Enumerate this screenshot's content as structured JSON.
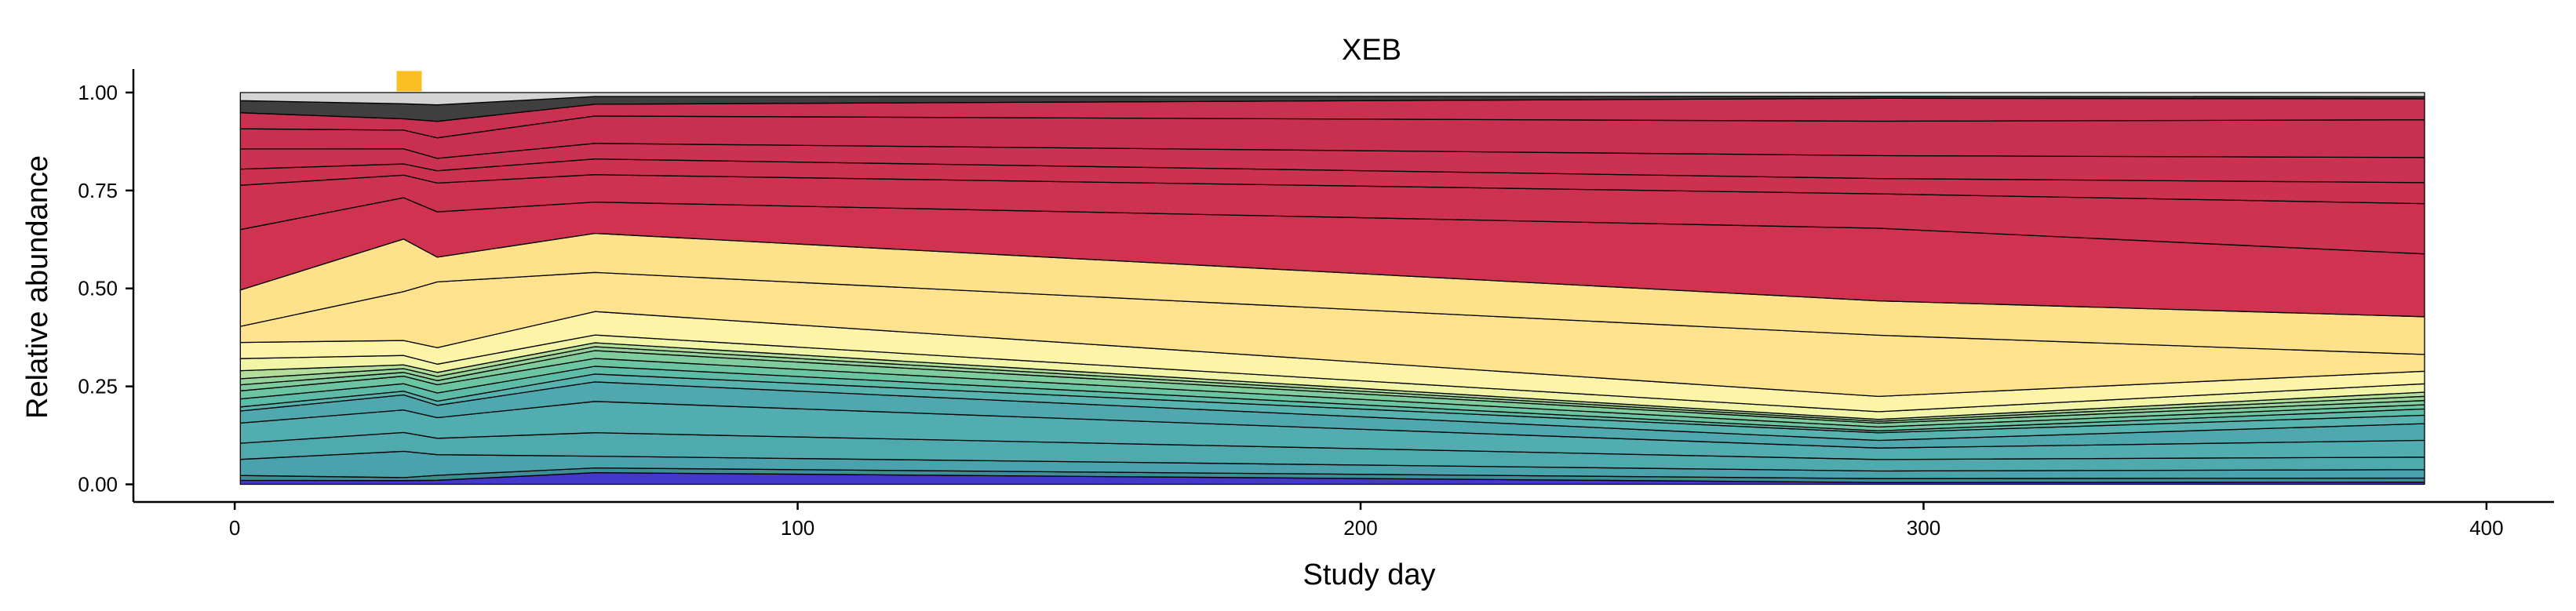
{
  "chart_data": {
    "type": "area",
    "stacked": true,
    "normalized": true,
    "title": "XEB",
    "xlabel": "Study day",
    "ylabel": "Relative abundance",
    "xlim": [
      -18,
      412
    ],
    "ylim": [
      -0.045,
      1.06
    ],
    "xticks": [
      0,
      100,
      200,
      300,
      400
    ],
    "xtick_labels": [
      "0",
      "100",
      "200",
      "300",
      "400"
    ],
    "yticks": [
      0,
      0.25,
      0.5,
      0.75,
      1
    ],
    "ytick_labels": [
      "0.00",
      "0.25",
      "0.50",
      "0.75",
      "1.00"
    ],
    "grid": false,
    "legend": "none",
    "x": [
      1,
      30,
      36,
      64,
      292,
      389
    ],
    "marker": {
      "x": 31,
      "color": "#fbbf24"
    },
    "series": [
      {
        "color": "#4338ca",
        "values": [
          0.01,
          0.01,
          0.01,
          0.03,
          0.005,
          0.005
        ]
      },
      {
        "color": "#3e8e97",
        "values": [
          0.012,
          0.008,
          0.012,
          0.012,
          0.01,
          0.01
        ]
      },
      {
        "color": "#4aa2ac",
        "values": [
          0.04,
          0.07,
          0.05,
          0.03,
          0.02,
          0.02
        ]
      },
      {
        "color": "#4faaae",
        "values": [
          0.04,
          0.05,
          0.04,
          0.06,
          0.03,
          0.03
        ]
      },
      {
        "color": "#52adb0",
        "values": [
          0.05,
          0.06,
          0.05,
          0.08,
          0.03,
          0.04
        ]
      },
      {
        "color": "#4fa8ad",
        "values": [
          0.03,
          0.04,
          0.03,
          0.05,
          0.02,
          0.04
        ]
      },
      {
        "color": "#56b3af",
        "values": [
          0.01,
          0.01,
          0.01,
          0.02,
          0.02,
          0.02
        ]
      },
      {
        "color": "#5dbca8",
        "values": [
          0.02,
          0.02,
          0.02,
          0.02,
          0.005,
          0.015
        ]
      },
      {
        "color": "#6cc5a2",
        "values": [
          0.02,
          0.02,
          0.02,
          0.02,
          0.01,
          0.01
        ]
      },
      {
        "color": "#7fcc9e",
        "values": [
          0.015,
          0.01,
          0.01,
          0.02,
          0.01,
          0.01
        ]
      },
      {
        "color": "#96d39b",
        "values": [
          0.015,
          0.01,
          0.01,
          0.01,
          0.005,
          0.01
        ]
      },
      {
        "color": "#b2de9a",
        "values": [
          0.02,
          0.01,
          0.01,
          0.01,
          0.005,
          0.01
        ]
      },
      {
        "color": "#f3f5a6",
        "values": [
          0.03,
          0.025,
          0.02,
          0.02,
          0.02,
          0.02
        ]
      },
      {
        "color": "#fef4a8",
        "values": [
          0.04,
          0.04,
          0.04,
          0.06,
          0.04,
          0.03
        ]
      },
      {
        "color": "#fde38e",
        "values": [
          0.04,
          0.13,
          0.16,
          0.1,
          0.16,
          0.04
        ]
      },
      {
        "color": "#fde18b",
        "values": [
          0.09,
          0.14,
          0.06,
          0.1,
          0.09,
          0.09
        ]
      },
      {
        "color": "#cf3350",
        "values": [
          0.15,
          0.11,
          0.11,
          0.08,
          0.19,
          0.15
        ]
      },
      {
        "color": "#cd3250",
        "values": [
          0.11,
          0.06,
          0.07,
          0.07,
          0.09,
          0.12
        ]
      },
      {
        "color": "#cc3250",
        "values": [
          0.04,
          0.03,
          0.03,
          0.04,
          0.04,
          0.05
        ]
      },
      {
        "color": "#cb3150",
        "values": [
          0.05,
          0.04,
          0.03,
          0.04,
          0.06,
          0.06
        ]
      },
      {
        "color": "#c93050",
        "values": [
          0.05,
          0.05,
          0.05,
          0.07,
          0.09,
          0.09
        ]
      },
      {
        "color": "#ca3151",
        "values": [
          0.04,
          0.03,
          0.04,
          0.03,
          0.06,
          0.05
        ]
      },
      {
        "color": "#3f3f3f",
        "values": [
          0.03,
          0.04,
          0.04,
          0.02,
          0.005,
          0.005
        ]
      },
      {
        "color": "#d4d4d4",
        "values": [
          0.02,
          0.03,
          0.03,
          0.01,
          0.01,
          0.01
        ]
      }
    ]
  }
}
